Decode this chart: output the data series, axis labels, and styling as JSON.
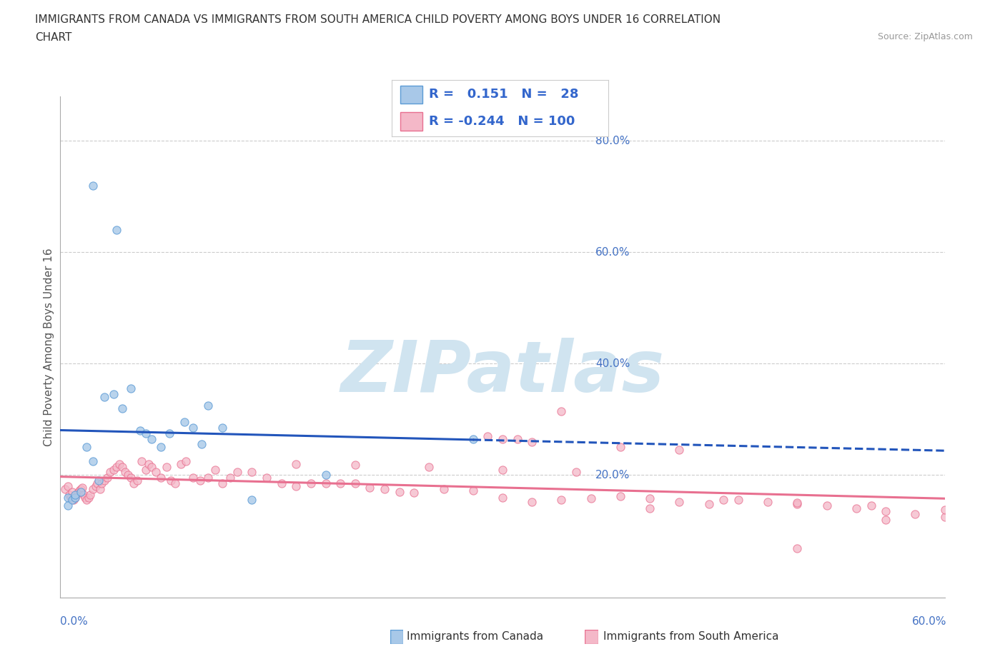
{
  "title_line1": "IMMIGRANTS FROM CANADA VS IMMIGRANTS FROM SOUTH AMERICA CHILD POVERTY AMONG BOYS UNDER 16 CORRELATION",
  "title_line2": "CHART",
  "source": "Source: ZipAtlas.com",
  "ylabel": "Child Poverty Among Boys Under 16",
  "ytick_labels": [
    "20.0%",
    "40.0%",
    "60.0%",
    "80.0%"
  ],
  "ytick_values": [
    0.2,
    0.4,
    0.6,
    0.8
  ],
  "xlim": [
    0.0,
    0.6
  ],
  "ylim": [
    -0.02,
    0.88
  ],
  "legend_canada_r": "0.151",
  "legend_canada_n": "28",
  "legend_sa_r": "-0.244",
  "legend_sa_n": "100",
  "canada_color": "#a8c8e8",
  "canada_edge": "#5b9bd5",
  "sa_fill": "#f4b8c8",
  "sa_edge": "#e87090",
  "trendline_canada_color": "#2255bb",
  "trendline_sa_color": "#e87090",
  "watermark_color": "#d8e8f0",
  "canada_x": [
    0.022,
    0.038,
    0.005,
    0.005,
    0.008,
    0.01,
    0.01,
    0.014,
    0.018,
    0.022,
    0.026,
    0.03,
    0.036,
    0.042,
    0.048,
    0.054,
    0.058,
    0.062,
    0.068,
    0.074,
    0.084,
    0.09,
    0.096,
    0.1,
    0.11,
    0.13,
    0.18,
    0.28
  ],
  "canada_y": [
    0.72,
    0.64,
    0.16,
    0.145,
    0.155,
    0.16,
    0.165,
    0.17,
    0.25,
    0.225,
    0.19,
    0.34,
    0.345,
    0.32,
    0.355,
    0.28,
    0.275,
    0.265,
    0.25,
    0.275,
    0.295,
    0.285,
    0.255,
    0.325,
    0.285,
    0.155,
    0.2,
    0.265
  ],
  "sa_x": [
    0.003,
    0.005,
    0.006,
    0.007,
    0.008,
    0.009,
    0.01,
    0.012,
    0.013,
    0.014,
    0.015,
    0.016,
    0.017,
    0.018,
    0.019,
    0.02,
    0.022,
    0.024,
    0.025,
    0.027,
    0.028,
    0.03,
    0.032,
    0.034,
    0.036,
    0.038,
    0.04,
    0.042,
    0.044,
    0.046,
    0.048,
    0.05,
    0.052,
    0.055,
    0.058,
    0.06,
    0.062,
    0.065,
    0.068,
    0.072,
    0.075,
    0.078,
    0.082,
    0.085,
    0.09,
    0.095,
    0.1,
    0.105,
    0.11,
    0.115,
    0.12,
    0.13,
    0.14,
    0.15,
    0.16,
    0.17,
    0.18,
    0.19,
    0.2,
    0.21,
    0.22,
    0.23,
    0.24,
    0.26,
    0.28,
    0.3,
    0.32,
    0.34,
    0.36,
    0.38,
    0.4,
    0.42,
    0.44,
    0.46,
    0.48,
    0.5,
    0.52,
    0.54,
    0.56,
    0.58,
    0.6,
    0.34,
    0.3,
    0.32,
    0.16,
    0.2,
    0.25,
    0.3,
    0.35,
    0.4,
    0.45,
    0.5,
    0.55,
    0.6,
    0.5,
    0.56,
    0.29,
    0.31,
    0.38,
    0.42
  ],
  "sa_y": [
    0.175,
    0.18,
    0.165,
    0.16,
    0.17,
    0.155,
    0.16,
    0.168,
    0.172,
    0.175,
    0.178,
    0.165,
    0.16,
    0.155,
    0.16,
    0.165,
    0.175,
    0.18,
    0.185,
    0.175,
    0.185,
    0.19,
    0.195,
    0.205,
    0.21,
    0.215,
    0.22,
    0.215,
    0.205,
    0.2,
    0.195,
    0.185,
    0.19,
    0.225,
    0.21,
    0.22,
    0.215,
    0.205,
    0.195,
    0.215,
    0.19,
    0.185,
    0.22,
    0.225,
    0.195,
    0.19,
    0.195,
    0.21,
    0.185,
    0.195,
    0.205,
    0.205,
    0.195,
    0.185,
    0.18,
    0.185,
    0.185,
    0.185,
    0.185,
    0.178,
    0.175,
    0.17,
    0.168,
    0.175,
    0.172,
    0.16,
    0.152,
    0.155,
    0.158,
    0.162,
    0.158,
    0.152,
    0.148,
    0.155,
    0.152,
    0.148,
    0.145,
    0.14,
    0.135,
    0.13,
    0.125,
    0.315,
    0.265,
    0.26,
    0.22,
    0.218,
    0.215,
    0.21,
    0.205,
    0.14,
    0.155,
    0.15,
    0.145,
    0.138,
    0.068,
    0.12,
    0.27,
    0.265,
    0.25,
    0.245
  ]
}
